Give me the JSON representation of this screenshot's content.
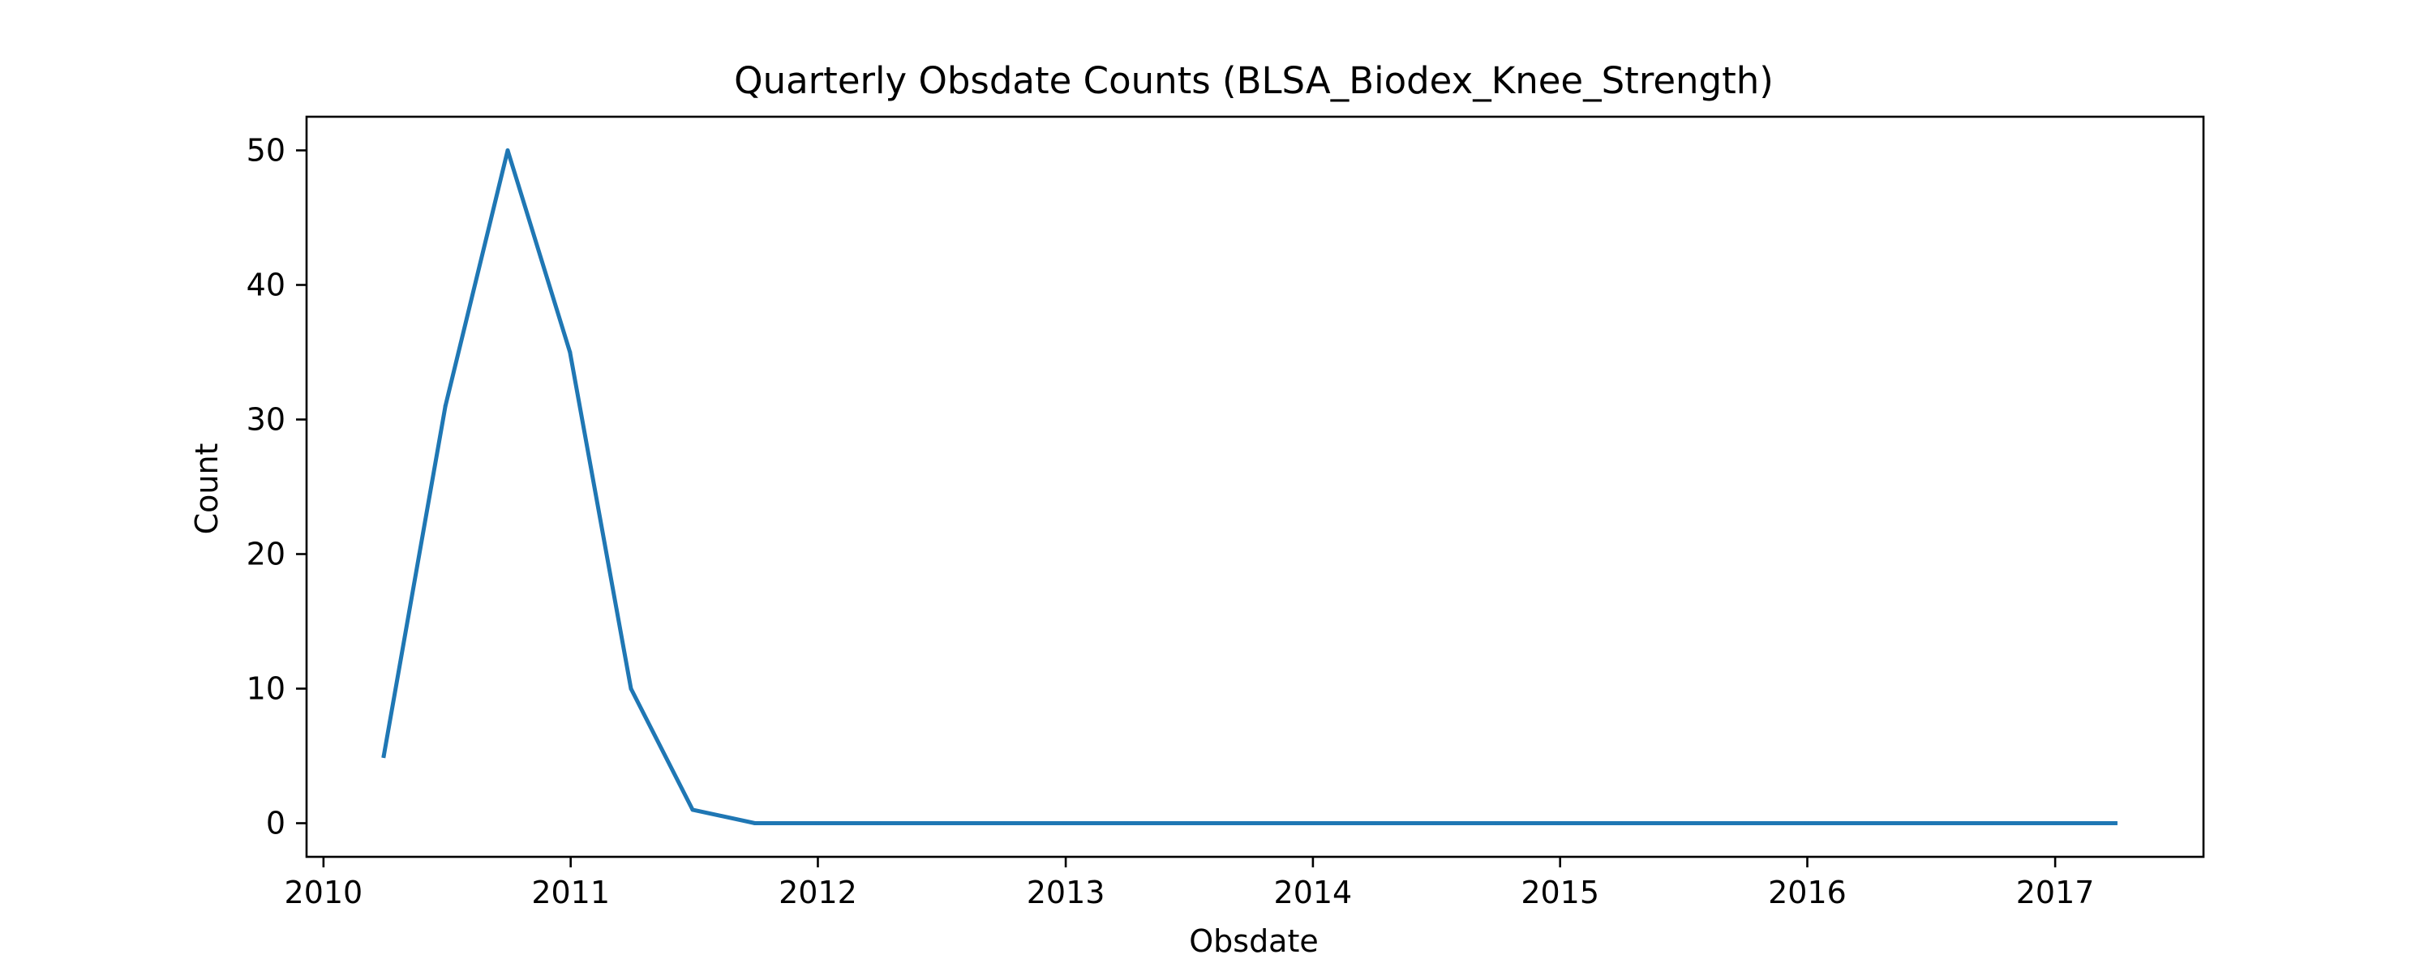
{
  "chart_data": {
    "type": "line",
    "title": "Quarterly Obsdate Counts (BLSA_Biodex_Knee_Strength)",
    "xlabel": "Obsdate",
    "ylabel": "Count",
    "x_scale": "date",
    "xlim": [
      "2009-12-07",
      "2017-08-08"
    ],
    "ylim": [
      -2.5,
      52.5
    ],
    "xticks": [
      {
        "date": "2010-01-01",
        "label": "2010"
      },
      {
        "date": "2011-01-01",
        "label": "2011"
      },
      {
        "date": "2012-01-01",
        "label": "2012"
      },
      {
        "date": "2013-01-01",
        "label": "2013"
      },
      {
        "date": "2014-01-01",
        "label": "2014"
      },
      {
        "date": "2015-01-01",
        "label": "2015"
      },
      {
        "date": "2016-01-01",
        "label": "2016"
      },
      {
        "date": "2017-01-01",
        "label": "2017"
      }
    ],
    "yticks": [
      0,
      10,
      20,
      30,
      40,
      50
    ],
    "grid": false,
    "series": [
      {
        "color": "#1f77b4",
        "x": [
          "2010-03-31",
          "2010-06-30",
          "2010-09-30",
          "2010-12-31",
          "2011-03-31",
          "2011-06-30",
          "2011-09-30",
          "2011-12-31",
          "2012-03-31",
          "2012-06-30",
          "2012-09-30",
          "2012-12-31",
          "2013-03-31",
          "2013-06-30",
          "2013-09-30",
          "2013-12-31",
          "2014-03-31",
          "2014-06-30",
          "2014-09-30",
          "2014-12-31",
          "2015-03-31",
          "2015-06-30",
          "2015-09-30",
          "2015-12-31",
          "2016-03-31",
          "2016-06-30",
          "2016-09-30",
          "2016-12-31",
          "2017-03-31"
        ],
        "values": [
          5,
          31,
          50,
          35,
          10,
          1,
          0,
          0,
          0,
          0,
          0,
          0,
          0,
          0,
          0,
          0,
          0,
          0,
          0,
          0,
          0,
          0,
          0,
          0,
          0,
          0,
          0,
          0,
          0
        ]
      }
    ]
  }
}
